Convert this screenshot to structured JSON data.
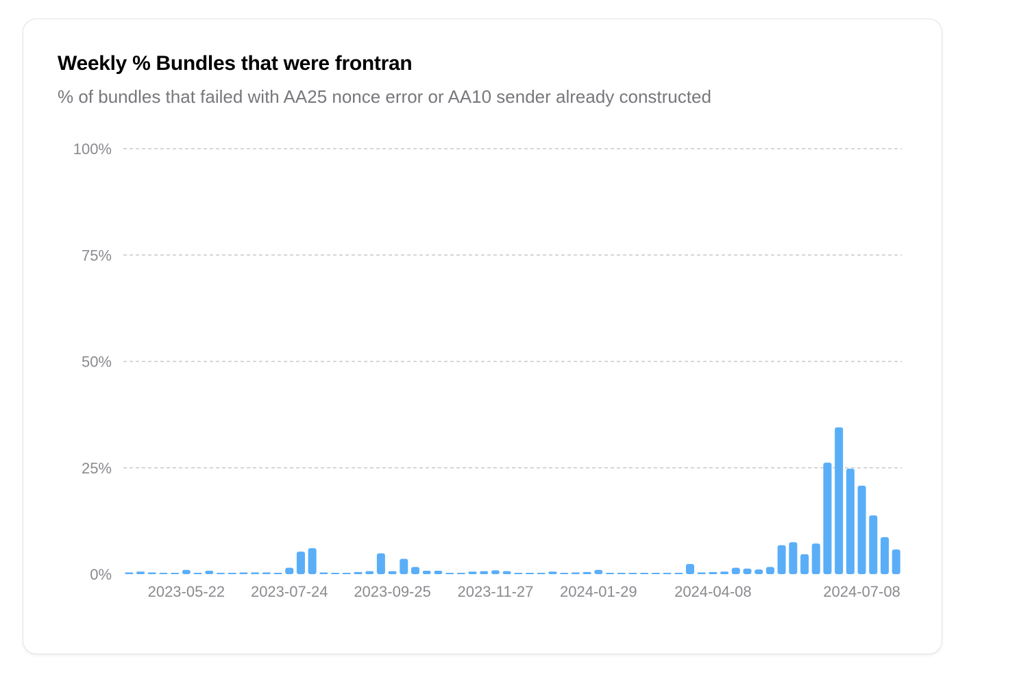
{
  "header": {
    "title": "Weekly % Bundles that were frontran",
    "subtitle": "% of bundles that failed with AA25 nonce error or AA10 sender already constructed"
  },
  "colors": {
    "bar": "#5aaef8",
    "grid": "#c8c8cc",
    "tick_text": "#8a8a8f"
  },
  "chart_data": {
    "type": "bar",
    "title": "Weekly % Bundles that were frontran",
    "subtitle": "% of bundles that failed with AA25 nonce error or AA10 sender already constructed",
    "xlabel": "",
    "ylabel": "",
    "ylim": [
      0,
      100
    ],
    "y_ticks": [
      0,
      25,
      50,
      75,
      100
    ],
    "y_tick_labels": [
      "0%",
      "25%",
      "50%",
      "75%",
      "100%"
    ],
    "x_tick_labels": [
      {
        "label": "2023-05-22",
        "index": 5
      },
      {
        "label": "2023-07-24",
        "index": 14
      },
      {
        "label": "2023-09-25",
        "index": 23
      },
      {
        "label": "2023-11-27",
        "index": 32
      },
      {
        "label": "2024-01-29",
        "index": 41
      },
      {
        "label": "2024-04-08",
        "index": 51
      },
      {
        "label": "2024-07-08",
        "index": 64
      }
    ],
    "grid": true,
    "legend": "none",
    "series": [
      {
        "values": [
          0.4,
          0.6,
          0.4,
          0.1,
          0.1,
          1.0,
          0.3,
          0.8,
          0.2,
          0.2,
          0.4,
          0.4,
          0.4,
          0.3,
          1.5,
          5.3,
          6.1,
          0.4,
          0.3,
          0.2,
          0.5,
          0.7,
          4.9,
          0.7,
          3.6,
          1.7,
          0.8,
          0.8,
          0.1,
          0.1,
          0.6,
          0.7,
          0.9,
          0.7,
          0.3,
          0.2,
          0.2,
          0.6,
          0.3,
          0.4,
          0.5,
          1.0,
          0.3,
          0.2,
          0.1,
          0.2,
          0.2,
          0.3,
          0.3,
          2.4,
          0.4,
          0.5,
          0.6,
          1.5,
          1.3,
          1.1,
          1.7,
          6.8,
          7.5,
          4.7,
          7.2,
          26.2,
          34.5,
          24.8,
          20.8,
          13.8,
          8.7,
          5.8
        ]
      }
    ]
  }
}
